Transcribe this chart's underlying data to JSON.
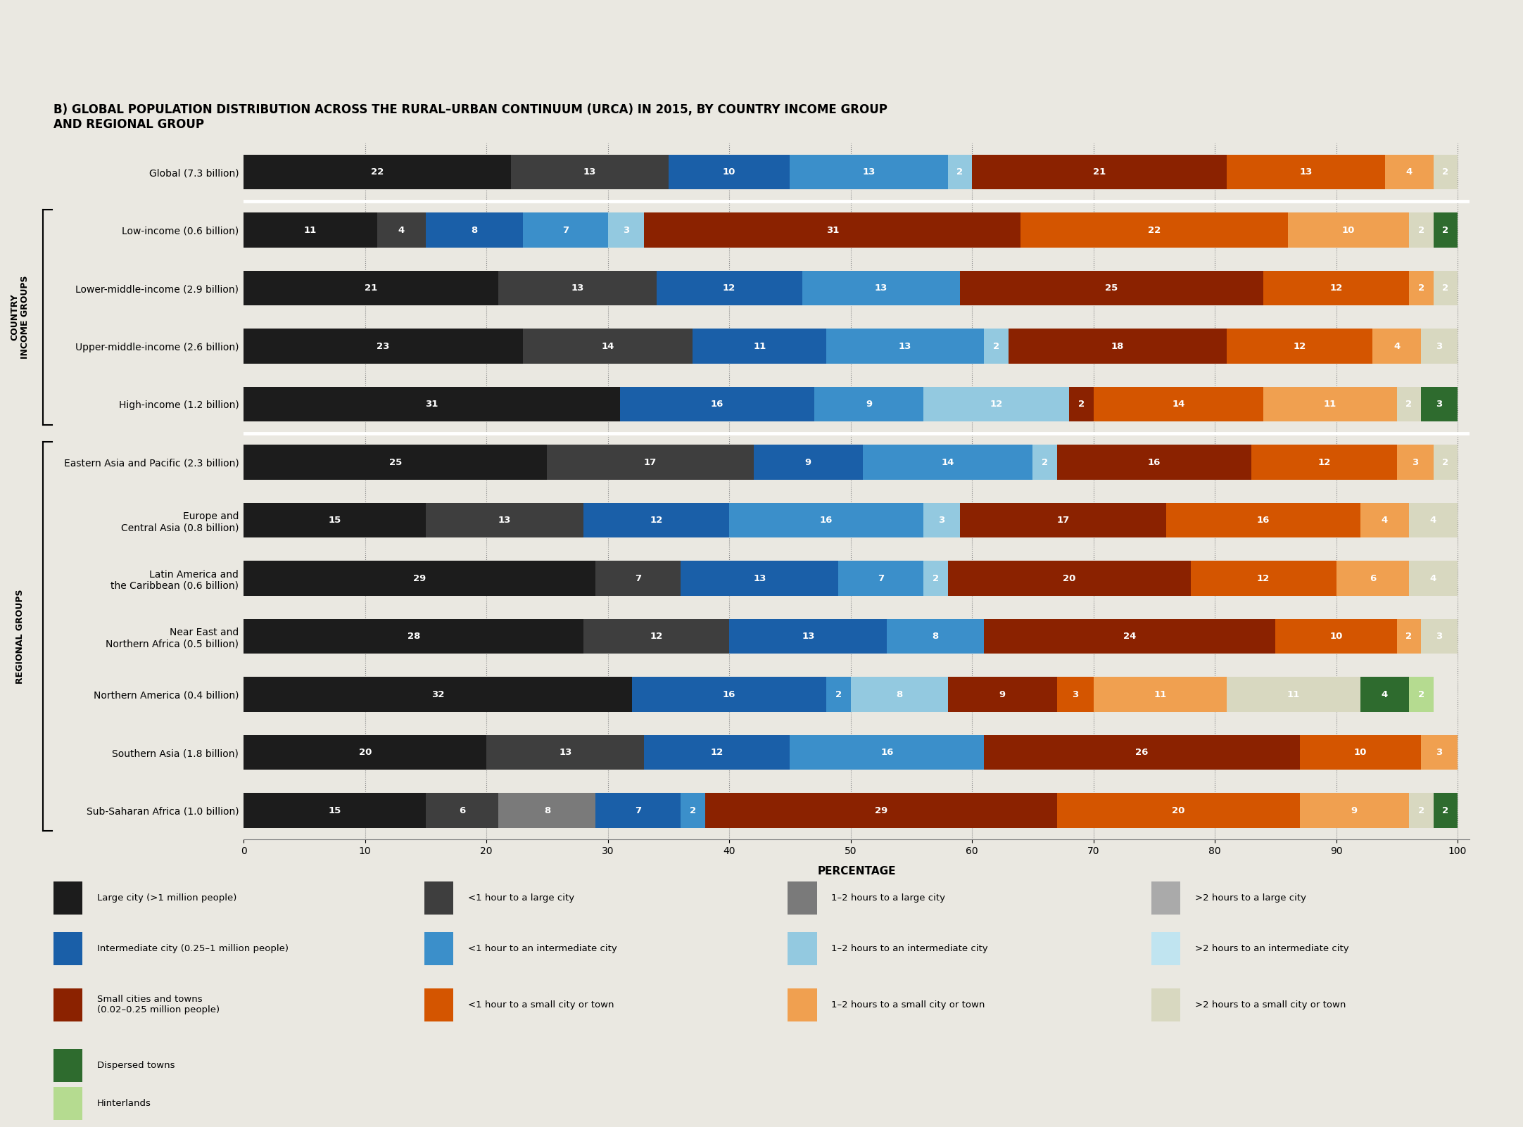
{
  "title": "B) GLOBAL POPULATION DISTRIBUTION ACROSS THE RURAL–URBAN CONTINUUM (URCA) IN 2015, BY COUNTRY INCOME GROUP\nAND REGIONAL GROUP",
  "categories": [
    "Global (7.3 billion)",
    "Low-income (0.6 billion)",
    "Lower-middle-income (2.9 billion)",
    "Upper-middle-income (2.6 billion)",
    "High-income (1.2 billion)",
    "Eastern Asia and Pacific (2.3 billion)",
    "Europe and\nCentral Asia (0.8 billion)",
    "Latin America and\nthe Caribbean (0.6 billion)",
    "Near East and\nNorthern Africa (0.5 billion)",
    "Northern America (0.4 billion)",
    "Southern Asia (1.8 billion)",
    "Sub-Saharan Africa (1.0 billion)"
  ],
  "rows_data": [
    [
      22,
      13,
      0,
      10,
      13,
      2,
      21,
      13,
      4,
      2,
      0,
      0
    ],
    [
      11,
      4,
      0,
      8,
      7,
      3,
      31,
      22,
      10,
      2,
      2,
      0
    ],
    [
      21,
      13,
      0,
      12,
      13,
      0,
      25,
      12,
      2,
      2,
      0,
      0
    ],
    [
      23,
      14,
      0,
      11,
      13,
      2,
      18,
      12,
      4,
      3,
      0,
      0
    ],
    [
      31,
      0,
      0,
      16,
      9,
      12,
      2,
      14,
      11,
      2,
      3,
      0
    ],
    [
      25,
      17,
      0,
      9,
      14,
      2,
      16,
      12,
      3,
      2,
      0,
      0
    ],
    [
      15,
      13,
      0,
      12,
      16,
      3,
      17,
      16,
      4,
      4,
      0,
      0
    ],
    [
      29,
      7,
      0,
      13,
      7,
      2,
      20,
      12,
      6,
      4,
      0,
      0
    ],
    [
      28,
      12,
      0,
      13,
      8,
      0,
      24,
      10,
      2,
      3,
      0,
      0
    ],
    [
      32,
      0,
      0,
      16,
      2,
      8,
      9,
      3,
      11,
      11,
      4,
      2
    ],
    [
      20,
      13,
      0,
      12,
      16,
      0,
      26,
      10,
      3,
      0,
      0,
      0
    ],
    [
      15,
      6,
      8,
      7,
      2,
      0,
      29,
      20,
      9,
      2,
      2,
      0
    ]
  ],
  "seg_colors": [
    "#1c1c1c",
    "#3e3e3e",
    "#7a7a7a",
    "#1a5fa8",
    "#3b8fca",
    "#93c9e0",
    "#8b2200",
    "#d45500",
    "#f0a050",
    "#d8d8c0",
    "#2e6b2e",
    "#b5db90"
  ],
  "seg_labels": [
    "Large city (>1 million people)",
    "<1 hour to a large city",
    "1–2 hours to a large city",
    "Intermediate city (0.25–1 million people)",
    "<1 hour to an intermediate city",
    "1–2 hours to an intermediate city",
    "Small cities and towns\n(0.02–0.25 million people)",
    "<1 hour to a small city or town",
    "1–2 hours to a small city or town",
    ">2 hours to a small city or town",
    "Dispersed towns",
    "Hinterlands"
  ],
  "background_color": "#eae8e1",
  "bar_height": 0.6,
  "xlabel": "PERCENTAGE",
  "xlim": [
    0,
    102
  ],
  "income_group_label": "COUNTRY\nINCOME GROUPS",
  "regional_group_label": "REGIONAL GROUPS",
  "legend_cols": [
    [
      [
        "Large city (>1 million people)",
        "#1c1c1c"
      ],
      [
        "Intermediate city (0.25–1 million people)",
        "#1a5fa8"
      ],
      [
        "Small cities and towns\n(0.02–0.25 million people)",
        "#8b2200"
      ],
      [
        "Dispersed towns",
        "#2e6b2e"
      ],
      [
        "Hinterlands",
        "#b5db90"
      ]
    ],
    [
      [
        "<1 hour to a large city",
        "#3e3e3e"
      ],
      [
        "<1 hour to an intermediate city",
        "#3b8fca"
      ],
      [
        "<1 hour to a small city or town",
        "#d45500"
      ],
      [
        "",
        null
      ],
      [
        "",
        null
      ]
    ],
    [
      [
        "1–2 hours to a large city",
        "#7a7a7a"
      ],
      [
        "1–2 hours to an intermediate city",
        "#93c9e0"
      ],
      [
        "1–2 hours to a small city or town",
        "#f0a050"
      ],
      [
        "",
        null
      ],
      [
        "",
        null
      ]
    ],
    [
      [
        ">2 hours to a large city",
        "#aaaaaa"
      ],
      [
        ">2 hours to an intermediate city",
        "#c0e4f0"
      ],
      [
        ">2 hours to a small city or town",
        "#d8d8c0"
      ],
      [
        "",
        null
      ],
      [
        "",
        null
      ]
    ]
  ]
}
